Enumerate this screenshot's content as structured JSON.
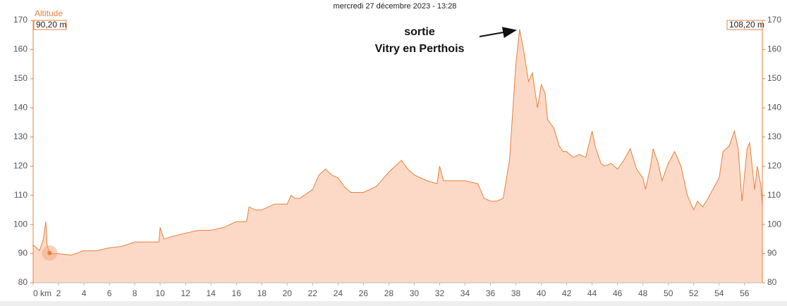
{
  "chart_data": {
    "type": "area",
    "title": "mercredi 27 décembre 2023 - 13:28",
    "y_label": "Altitude",
    "start_label": "90,20 m",
    "end_label": "108,20 m",
    "annotation": [
      "sortie",
      "Vitry en Perthois"
    ],
    "color": "#e8803a",
    "fill": "#fcd9c6",
    "cursor": {
      "x": 1.3,
      "value": 90.2
    },
    "x": [
      0,
      0.5,
      0.8,
      1,
      1.1,
      1.3,
      2,
      3,
      4,
      5,
      6,
      7,
      8,
      9,
      9.9,
      10,
      10.3,
      11,
      12,
      13,
      14,
      15,
      16,
      16.8,
      17,
      17.5,
      18,
      19,
      20,
      20.3,
      20.6,
      21,
      22,
      22.5,
      23,
      23.5,
      24,
      24.5,
      25,
      26,
      27,
      28,
      29,
      29.5,
      30,
      31,
      31.8,
      32,
      32.3,
      33,
      34,
      35,
      35.5,
      36,
      36.5,
      37,
      37.5,
      38,
      38.3,
      38.6,
      39,
      39.3,
      39.7,
      40,
      40.3,
      40.5,
      41,
      41.4,
      41.7,
      42,
      42.5,
      43,
      43.5,
      44,
      44.3,
      44.7,
      45,
      45.5,
      46,
      46.5,
      47,
      47.5,
      48,
      48.2,
      48.6,
      48.8,
      49.2,
      49.5,
      50,
      50.5,
      51,
      51.5,
      52,
      52.3,
      52.7,
      53,
      53.5,
      54,
      54.3,
      54.8,
      55.2,
      55.5,
      55.8,
      56.2,
      56.4,
      56.8,
      57,
      57.3,
      57.4
    ],
    "values": [
      93,
      91,
      95,
      101,
      93,
      90,
      90,
      89.5,
      91,
      91,
      92,
      92.5,
      94,
      94,
      94,
      99,
      95,
      96,
      97,
      98,
      98,
      99,
      101,
      101,
      106,
      105,
      105,
      107,
      107,
      110,
      109,
      109,
      112,
      117,
      119,
      117,
      116,
      113,
      111,
      111,
      113,
      118,
      122,
      119,
      117,
      115,
      114,
      120,
      115,
      115,
      115,
      114,
      109,
      108,
      108,
      109,
      122,
      155,
      167,
      160,
      149,
      152,
      140,
      148,
      145,
      136,
      133,
      127,
      125,
      125,
      123,
      124,
      123,
      132,
      126,
      121,
      120,
      121,
      119,
      122,
      126,
      119,
      116,
      112,
      120,
      126,
      121,
      115,
      121,
      125,
      120,
      110,
      105,
      108,
      106,
      108,
      112,
      116,
      125,
      127,
      132,
      126,
      108,
      126,
      128,
      112,
      120,
      113,
      106
    ],
    "xlim": [
      0,
      57.4
    ],
    "ylim": [
      80,
      170
    ],
    "xticks": [
      {
        "value": 0,
        "label": "0 km"
      },
      2,
      4,
      6,
      8,
      10,
      12,
      14,
      16,
      18,
      20,
      22,
      24,
      26,
      28,
      30,
      32,
      34,
      36,
      38,
      40,
      42,
      44,
      46,
      48,
      50,
      52,
      54,
      56
    ],
    "yticks": [
      80,
      90,
      100,
      110,
      120,
      130,
      140,
      150,
      160,
      170
    ]
  }
}
